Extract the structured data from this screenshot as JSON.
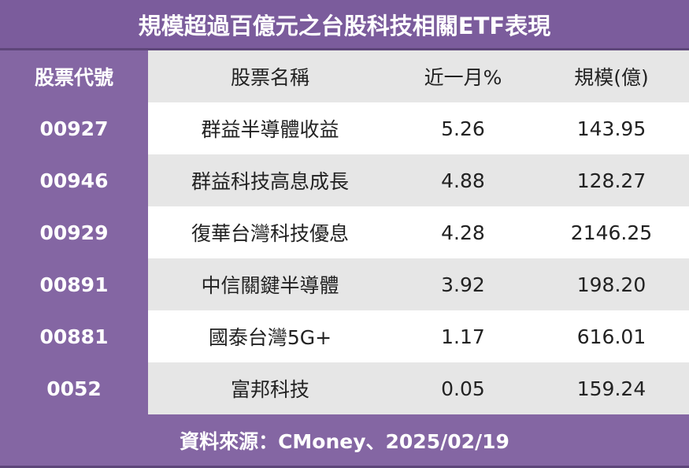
{
  "chart_data": {
    "type": "table",
    "title": "規模超過百億元之台股科技相關ETF表現",
    "columns": [
      "股票代號",
      "股票名稱",
      "近一月%",
      "規模(億)"
    ],
    "rows": [
      {
        "code": "00927",
        "name": "群益半導體收益",
        "return_1m": "5.26",
        "size": "143.95"
      },
      {
        "code": "00946",
        "name": "群益科技高息成長",
        "return_1m": "4.88",
        "size": "128.27"
      },
      {
        "code": "00929",
        "name": "復華台灣科技優息",
        "return_1m": "4.28",
        "size": "2146.25"
      },
      {
        "code": "00891",
        "name": "中信關鍵半導體",
        "return_1m": "3.92",
        "size": "198.20"
      },
      {
        "code": "00881",
        "name": "國泰台灣5G+",
        "return_1m": "1.17",
        "size": "616.01"
      },
      {
        "code": "0052",
        "name": "富邦科技",
        "return_1m": "0.05",
        "size": "159.24"
      }
    ],
    "source": "資料來源：CMoney、2025/02/19"
  },
  "colors": {
    "accent": "#8466a3",
    "title_bg": "#7b5c9c",
    "row_gray": "#e6e6e6",
    "row_white": "#ffffff"
  }
}
